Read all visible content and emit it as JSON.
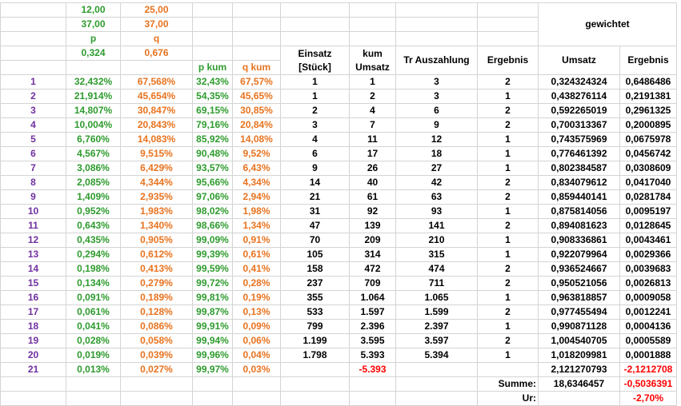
{
  "header": {
    "p_column": [
      "12,00",
      "37,00",
      "p",
      "0,324"
    ],
    "q_column": [
      "25,00",
      "37,00",
      "q",
      "0,676"
    ],
    "p_kum": "p kum",
    "q_kum": "q kum",
    "gewichtet": "gewichtet",
    "columns": [
      "Einsatz\n[Stück]",
      "kum\nUmsatz",
      "Tr Auszahlung",
      "Ergebnis",
      "Umsatz",
      "Ergebnis"
    ]
  },
  "table": {
    "rows": [
      [
        "1",
        "32,432%",
        "67,568%",
        "32,43%",
        "67,57%",
        "1",
        "1",
        "3",
        "2",
        "0,324324324",
        "0,6486486"
      ],
      [
        "2",
        "21,914%",
        "45,654%",
        "54,35%",
        "45,65%",
        "1",
        "2",
        "3",
        "1",
        "0,438276114",
        "0,2191381"
      ],
      [
        "3",
        "14,807%",
        "30,847%",
        "69,15%",
        "30,85%",
        "2",
        "4",
        "6",
        "2",
        "0,592265019",
        "0,2961325"
      ],
      [
        "4",
        "10,004%",
        "20,843%",
        "79,16%",
        "20,84%",
        "3",
        "7",
        "9",
        "2",
        "0,700313367",
        "0,2000895"
      ],
      [
        "5",
        "6,760%",
        "14,083%",
        "85,92%",
        "14,08%",
        "4",
        "11",
        "12",
        "1",
        "0,743575969",
        "0,0675978"
      ],
      [
        "6",
        "4,567%",
        "9,515%",
        "90,48%",
        "9,52%",
        "6",
        "17",
        "18",
        "1",
        "0,776461392",
        "0,0456742"
      ],
      [
        "7",
        "3,086%",
        "6,429%",
        "93,57%",
        "6,43%",
        "9",
        "26",
        "27",
        "1",
        "0,802384587",
        "0,0308609"
      ],
      [
        "8",
        "2,085%",
        "4,344%",
        "95,66%",
        "4,34%",
        "14",
        "40",
        "42",
        "2",
        "0,834079612",
        "0,0417040"
      ],
      [
        "9",
        "1,409%",
        "2,935%",
        "97,06%",
        "2,94%",
        "21",
        "61",
        "63",
        "2",
        "0,859440141",
        "0,0281784"
      ],
      [
        "10",
        "0,952%",
        "1,983%",
        "98,02%",
        "1,98%",
        "31",
        "92",
        "93",
        "1",
        "0,875814056",
        "0,0095197"
      ],
      [
        "11",
        "0,643%",
        "1,340%",
        "98,66%",
        "1,34%",
        "47",
        "139",
        "141",
        "2",
        "0,894081623",
        "0,0128645"
      ],
      [
        "12",
        "0,435%",
        "0,905%",
        "99,09%",
        "0,91%",
        "70",
        "209",
        "210",
        "1",
        "0,908336861",
        "0,0043461"
      ],
      [
        "13",
        "0,294%",
        "0,612%",
        "99,39%",
        "0,61%",
        "105",
        "314",
        "315",
        "1",
        "0,922079964",
        "0,0029366"
      ],
      [
        "14",
        "0,198%",
        "0,413%",
        "99,59%",
        "0,41%",
        "158",
        "472",
        "474",
        "2",
        "0,936524667",
        "0,0039683"
      ],
      [
        "15",
        "0,134%",
        "0,279%",
        "99,72%",
        "0,28%",
        "237",
        "709",
        "711",
        "2",
        "0,950521056",
        "0,0026813"
      ],
      [
        "16",
        "0,091%",
        "0,189%",
        "99,81%",
        "0,19%",
        "355",
        "1.064",
        "1.065",
        "1",
        "0,963818857",
        "0,0009058"
      ],
      [
        "17",
        "0,061%",
        "0,128%",
        "99,87%",
        "0,13%",
        "533",
        "1.597",
        "1.599",
        "2",
        "0,977455494",
        "0,0012241"
      ],
      [
        "18",
        "0,041%",
        "0,086%",
        "99,91%",
        "0,09%",
        "799",
        "2.396",
        "2.397",
        "1",
        "0,990871128",
        "0,0004136"
      ],
      [
        "19",
        "0,028%",
        "0,058%",
        "99,94%",
        "0,06%",
        "1.199",
        "3.595",
        "3.597",
        "2",
        "1,004540705",
        "0,0005589"
      ],
      [
        "20",
        "0,019%",
        "0,039%",
        "99,96%",
        "0,04%",
        "1.798",
        "5.393",
        "5.394",
        "1",
        "1,018209981",
        "0,0001888"
      ],
      [
        "21",
        "0,013%",
        "0,027%",
        "99,97%",
        "0,03%",
        null,
        "-5.393",
        null,
        null,
        "2,121270793",
        "-2,1212708"
      ]
    ]
  },
  "footer": {
    "summe_label": "Summe:",
    "summe_umsatz": "18,6346457",
    "summe_ergebnis": "-0,5036391",
    "ur_label": "Ur:",
    "ur_value": "-2,70%"
  }
}
